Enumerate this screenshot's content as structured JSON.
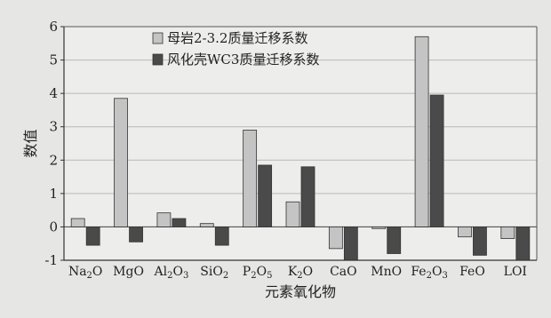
{
  "chart_data": {
    "type": "bar",
    "xlabel": "元素氧化物",
    "ylabel": "数值",
    "ylim": [
      -1,
      6
    ],
    "yticks": [
      "-1",
      "0",
      "1",
      "2",
      "3",
      "4",
      "5",
      "6"
    ],
    "grid": "horizontal",
    "legend_placement": "top-center",
    "categories": [
      {
        "base": "Na",
        "sub": "2",
        "tail": "O"
      },
      {
        "base": "MgO",
        "sub": "",
        "tail": ""
      },
      {
        "base": "Al",
        "sub": "2",
        "tail": "O",
        "sub2": "3"
      },
      {
        "base": "SiO",
        "sub": "2",
        "tail": ""
      },
      {
        "base": "P",
        "sub": "2",
        "tail": "O",
        "sub2": "5"
      },
      {
        "base": "K",
        "sub": "2",
        "tail": "O"
      },
      {
        "base": "CaO",
        "sub": "",
        "tail": ""
      },
      {
        "base": "MnO",
        "sub": "",
        "tail": ""
      },
      {
        "base": "Fe",
        "sub": "2",
        "tail": "O",
        "sub2": "3"
      },
      {
        "base": "FeO",
        "sub": "",
        "tail": ""
      },
      {
        "base": "LOI",
        "sub": "",
        "tail": ""
      }
    ],
    "series": [
      {
        "name": "母岩2-3.2质量迁移系数",
        "color": "#c4c4c4",
        "values": [
          0.25,
          3.85,
          0.42,
          0.1,
          2.9,
          0.75,
          -0.65,
          -0.05,
          5.7,
          -0.3,
          -0.35
        ]
      },
      {
        "name": "风化壳WC3质量迁移系数",
        "color": "#4a4a4a",
        "values": [
          -0.55,
          -0.45,
          0.25,
          -0.55,
          1.85,
          1.8,
          -1.0,
          -0.8,
          3.95,
          -0.85,
          -1.0
        ]
      }
    ]
  }
}
